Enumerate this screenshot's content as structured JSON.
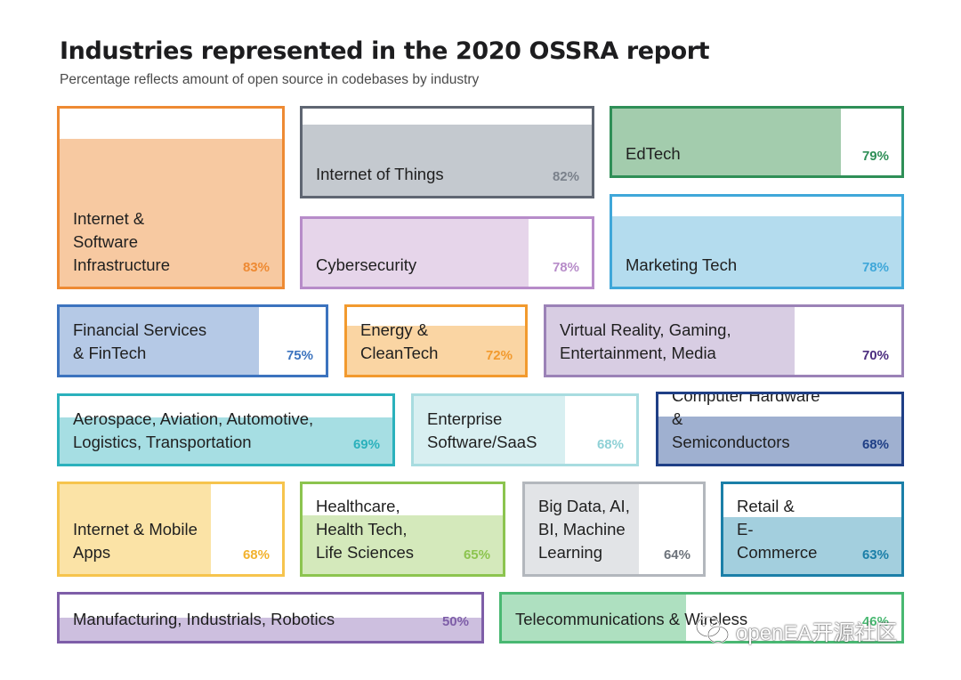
{
  "chart_data": {
    "type": "bar",
    "title": "Industries represented in the 2020 OSSRA report",
    "subtitle": "Percentage reflects amount of open source in codebases by industry",
    "categories": [
      "Internet & Software Infrastructure",
      "Internet of Things",
      "EdTech",
      "Cybersecurity",
      "Marketing Tech",
      "Financial Services & FinTech",
      "Energy & CleanTech",
      "Virtual Reality, Gaming, Entertainment, Media",
      "Aerospace, Aviation, Automotive, Logistics, Transportation",
      "Enterprise Software/SaaS",
      "Computer Hardware & Semiconductors",
      "Internet & Mobile Apps",
      "Healthcare, Health Tech, Life Sciences",
      "Big Data, AI, BI, Machine Learning",
      "Retail & E-Commerce",
      "Manufacturing, Industrials, Robotics",
      "Telecommunications & Wireless"
    ],
    "values": [
      83,
      82,
      79,
      78,
      78,
      75,
      72,
      70,
      69,
      68,
      68,
      68,
      65,
      64,
      63,
      50,
      46
    ],
    "unit": "%",
    "tiles": [
      {
        "label": "Internet &\nSoftware\nInfrastructure",
        "pct_text": "83%",
        "value": 83,
        "fill": "vertical",
        "border": "#ee8a33",
        "bg": "#f7c9a1",
        "text": "#ee8a33"
      },
      {
        "label": "Internet of Things",
        "pct_text": "82%",
        "value": 82,
        "fill": "vertical",
        "border": "#5f6672",
        "bg": "#c4c9cf",
        "text": "#7a818b"
      },
      {
        "label": "EdTech",
        "pct_text": "79%",
        "value": 79,
        "fill": "horizontal",
        "border": "#2f8f57",
        "bg": "#a3ccad",
        "text": "#2f8f57"
      },
      {
        "label": "Cybersecurity",
        "pct_text": "78%",
        "value": 78,
        "fill": "horizontal",
        "border": "#b78cc9",
        "bg": "#e6d5ea",
        "text": "#b78cc9"
      },
      {
        "label": "Marketing Tech",
        "pct_text": "78%",
        "value": 78,
        "fill": "vertical",
        "border": "#3fa7d9",
        "bg": "#b4dcee",
        "text": "#3fa7d9"
      },
      {
        "label": "Financial Services\n& FinTech",
        "pct_text": "75%",
        "value": 75,
        "fill": "horizontal",
        "border": "#3c73be",
        "bg": "#b5c9e6",
        "text": "#3c73be"
      },
      {
        "label": "Energy &\nCleanTech",
        "pct_text": "72%",
        "value": 72,
        "fill": "vertical",
        "border": "#f29a2e",
        "bg": "#fad5a3",
        "text": "#f29a2e"
      },
      {
        "label": "Virtual Reality, Gaming,\nEntertainment, Media",
        "pct_text": "70%",
        "value": 70,
        "fill": "horizontal",
        "border": "#9b82b7",
        "bg": "#d8cde3",
        "text": "#4b2d7f"
      },
      {
        "label": "Aerospace, Aviation, Automotive,\nLogistics, Transportation",
        "pct_text": "69%",
        "value": 69,
        "fill": "vertical",
        "border": "#2bb1bc",
        "bg": "#a6dee3",
        "text": "#2bb1bc"
      },
      {
        "label": "Enterprise\nSoftware/SaaS",
        "pct_text": "68%",
        "value": 68,
        "fill": "horizontal",
        "border": "#a8dce0",
        "bg": "#d8eff1",
        "text": "#8fd1d6"
      },
      {
        "label": "Computer Hardware &\nSemiconductors",
        "pct_text": "68%",
        "value": 68,
        "fill": "vertical",
        "border": "#1f3f86",
        "bg": "#9fb0d0",
        "text": "#1f3f86"
      },
      {
        "label": "Internet & Mobile\nApps",
        "pct_text": "68%",
        "value": 68,
        "fill": "horizontal",
        "border": "#f6c44d",
        "bg": "#fbe3a6",
        "text": "#f2b22e"
      },
      {
        "label": "Healthcare,\nHealth Tech,\nLife Sciences",
        "pct_text": "65%",
        "value": 65,
        "fill": "vertical",
        "border": "#8cc44f",
        "bg": "#d4e9bb",
        "text": "#8cc44f"
      },
      {
        "label": "Big Data, AI,\nBI, Machine\nLearning",
        "pct_text": "64%",
        "value": 64,
        "fill": "horizontal",
        "border": "#b3b7bd",
        "bg": "#e2e4e7",
        "text": "#6d737b"
      },
      {
        "label": "Retail &\nE-Commerce",
        "pct_text": "63%",
        "value": 63,
        "fill": "vertical",
        "border": "#1b7fa8",
        "bg": "#a3cfde",
        "text": "#1b7fa8"
      },
      {
        "label": "Manufacturing, Industrials, Robotics",
        "pct_text": "50%",
        "value": 50,
        "fill": "vertical",
        "border": "#7e5ea8",
        "bg": "#cdbfdf",
        "text": "#7e5ea8"
      },
      {
        "label": "Telecommunications & Wireless",
        "pct_text": "46%",
        "value": 46,
        "fill": "horizontal",
        "border": "#49b872",
        "bg": "#aee0c0",
        "text": "#49b872"
      }
    ]
  },
  "watermark": {
    "text": "openEA开源社区",
    "icon": "wechat-icon"
  }
}
